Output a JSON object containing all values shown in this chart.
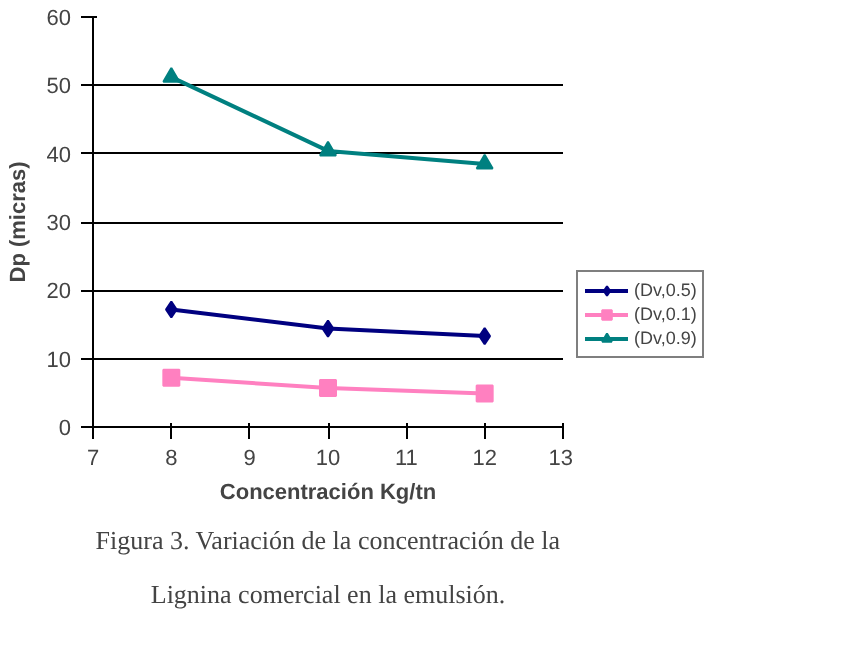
{
  "chart_data": {
    "type": "line",
    "xlabel": "Concentración Kg/tn",
    "ylabel": "Dp (micras)",
    "x": [
      8,
      10,
      12
    ],
    "xlim": [
      7,
      13
    ],
    "xticks": [
      7,
      8,
      9,
      10,
      11,
      12,
      13
    ],
    "ylim": [
      0,
      60
    ],
    "yticks": [
      0,
      10,
      20,
      30,
      40,
      50,
      60
    ],
    "grid": "y",
    "legend": "bottom right",
    "line_style": "solid",
    "series": [
      {
        "name": "(Dv,0.5)",
        "color": "#000080",
        "marker": "diamond",
        "values": [
          17.2,
          14.4,
          13.3
        ]
      },
      {
        "name": "(Dv,0.1)",
        "color": "#ff80c0",
        "marker": "square",
        "values": [
          7.2,
          5.7,
          4.9
        ]
      },
      {
        "name": "(Dv,0.9)",
        "color": "#008080",
        "marker": "triangle",
        "values": [
          51.2,
          40.4,
          38.5
        ]
      }
    ],
    "annotations": [
      "Figura 3. Variación de la concentración de la Lignina comercial en la emulsión."
    ]
  }
}
